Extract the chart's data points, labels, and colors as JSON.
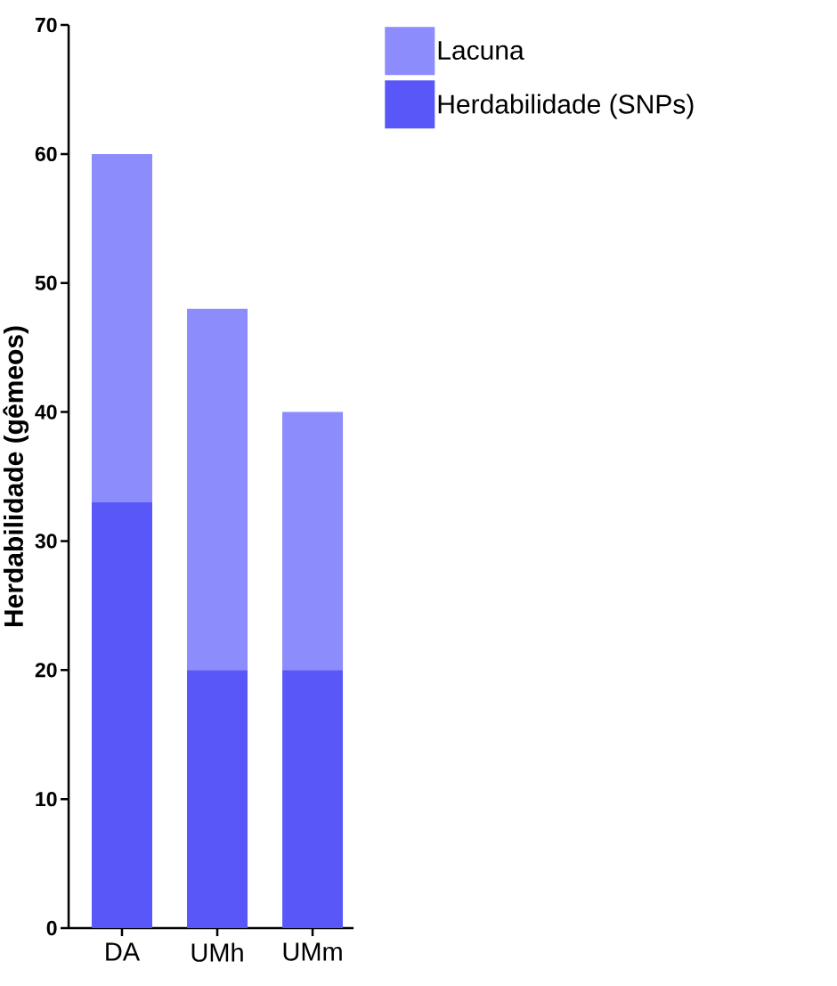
{
  "chart_data": {
    "type": "bar",
    "stacked": true,
    "ylabel": "Herdabilidade (gêmeos)",
    "categories": [
      "DA",
      "UMh",
      "UMm"
    ],
    "series": [
      {
        "name": "Herdabilidade (SNPs)",
        "color": "#5a57f8",
        "values": [
          33,
          20,
          20
        ]
      },
      {
        "name": "Lacuna",
        "color": "#8c8cfc",
        "values": [
          27,
          28,
          20
        ]
      }
    ],
    "ylim": [
      0,
      70
    ],
    "yticks": [
      0,
      10,
      20,
      30,
      40,
      50,
      60,
      70
    ],
    "legend": "top right"
  }
}
